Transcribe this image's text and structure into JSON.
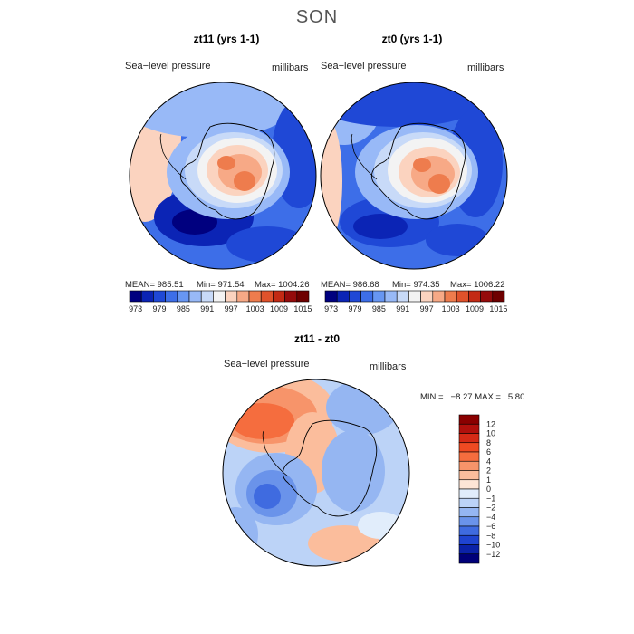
{
  "title": "SON",
  "panels": [
    {
      "subtitle": "zt11 (yrs 1-1)",
      "var_label": "Sea−level pressure",
      "units": "millibars",
      "mean": "MEAN= 985.51",
      "min": "Min= 971.54",
      "max": "Max= 1004.26"
    },
    {
      "subtitle": "zt0 (yrs 1-1)",
      "var_label": "Sea−level pressure",
      "units": "millibars",
      "mean": "MEAN= 986.68",
      "min": "Min= 974.35",
      "max": "Max= 1006.22"
    }
  ],
  "diff_panel": {
    "subtitle": "zt11 - zt0",
    "var_label": "Sea−level pressure",
    "units": "millibars",
    "minmax": "MIN =   −8.27 MAX =   5.80"
  },
  "chart_data": [
    {
      "type": "heatmap",
      "title": "zt11 (yrs 1-1)",
      "projection": "south polar stereographic",
      "variable": "Sea-level pressure",
      "units": "millibars",
      "mean": 985.51,
      "min": 971.54,
      "max": 1004.26,
      "colorbar_ticks": [
        "973",
        "979",
        "985",
        "991",
        "997",
        "1003",
        "1009",
        "1015"
      ],
      "colorbar_colors": [
        "#00007f",
        "#0b24b5",
        "#1f48d6",
        "#3d6ee8",
        "#6796f2",
        "#98b9f7",
        "#c8daf8",
        "#f3f3f3",
        "#fbd3bf",
        "#f7a986",
        "#ee7c4d",
        "#e0522b",
        "#c32a14",
        "#950b0b",
        "#6e0000"
      ]
    },
    {
      "type": "heatmap",
      "title": "zt0 (yrs 1-1)",
      "projection": "south polar stereographic",
      "variable": "Sea-level pressure",
      "units": "millibars",
      "mean": 986.68,
      "min": 974.35,
      "max": 1006.22,
      "colorbar_ticks": [
        "973",
        "979",
        "985",
        "991",
        "997",
        "1003",
        "1009",
        "1015"
      ],
      "colorbar_colors": [
        "#00007f",
        "#0b24b5",
        "#1f48d6",
        "#3d6ee8",
        "#6796f2",
        "#98b9f7",
        "#c8daf8",
        "#f3f3f3",
        "#fbd3bf",
        "#f7a986",
        "#ee7c4d",
        "#e0522b",
        "#c32a14",
        "#950b0b",
        "#6e0000"
      ]
    },
    {
      "type": "heatmap",
      "title": "zt11 - zt0",
      "projection": "south polar stereographic",
      "variable": "Sea-level pressure",
      "units": "millibars",
      "min": -8.27,
      "max": 5.8,
      "colorbar_ticks": [
        "12",
        "10",
        "8",
        "6",
        "4",
        "2",
        "1",
        "0",
        "−1",
        "−2",
        "−4",
        "−6",
        "−8",
        "−10",
        "−12"
      ],
      "colorbar_colors": [
        "#8a0000",
        "#b0100c",
        "#d52a16",
        "#ef4a22",
        "#f56d3e",
        "#f7946a",
        "#fbbd9c",
        "#fde5d6",
        "#e1edfb",
        "#bcd3f7",
        "#95b6f2",
        "#6a93ea",
        "#3f6be0",
        "#1f44d0",
        "#0b22a8",
        "#000079"
      ]
    }
  ]
}
